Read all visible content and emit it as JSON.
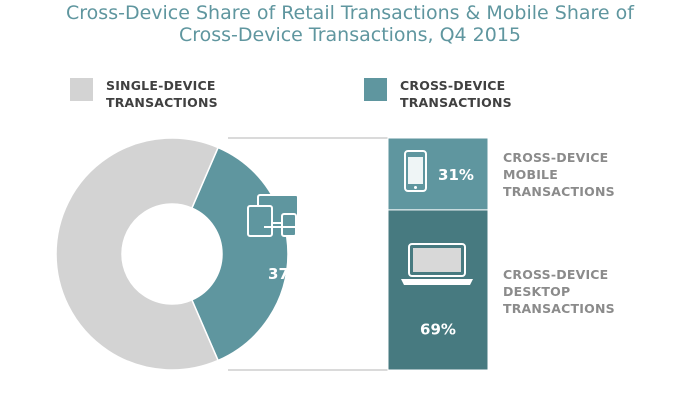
{
  "title_line1": "Cross-Device Share of Retail Transactions & Mobile Share of",
  "title_line2": "Cross-Device Transactions, Q4 2015",
  "legend": [
    {
      "label_line1": "SINGLE-DEVICE",
      "label_line2": "TRANSACTIONS",
      "color": "#d3d3d3"
    },
    {
      "label_line1": "CROSS-DEVICE",
      "label_line2": "TRANSACTIONS",
      "color": "#5f969f"
    }
  ],
  "side_labels": {
    "mobile": [
      "CROSS-DEVICE",
      "MOBILE",
      "TRANSACTIONS"
    ],
    "desktop": [
      "CROSS-DEVICE",
      "DESKTOP",
      "TRANSACTIONS"
    ]
  },
  "chart_data": [
    {
      "type": "pie",
      "title": "",
      "labels": [
        "Single-Device Transactions",
        "Cross-Device Transactions"
      ],
      "values": [
        63,
        37
      ],
      "data_labels": [
        "",
        "37%"
      ],
      "colors": [
        "#d3d3d3",
        "#5f969f"
      ]
    },
    {
      "type": "bar",
      "stacked": true,
      "title": "",
      "categories": [
        "Cross-Device Transactions"
      ],
      "series": [
        {
          "name": "CROSS-DEVICE MOBILE TRANSACTIONS",
          "values": [
            31
          ],
          "label": "31%",
          "color": "#5f969f"
        },
        {
          "name": "CROSS-DEVICE DESKTOP TRANSACTIONS",
          "values": [
            69
          ],
          "label": "69%",
          "color": "#477a80"
        }
      ],
      "ylim": [
        0,
        100
      ]
    }
  ]
}
